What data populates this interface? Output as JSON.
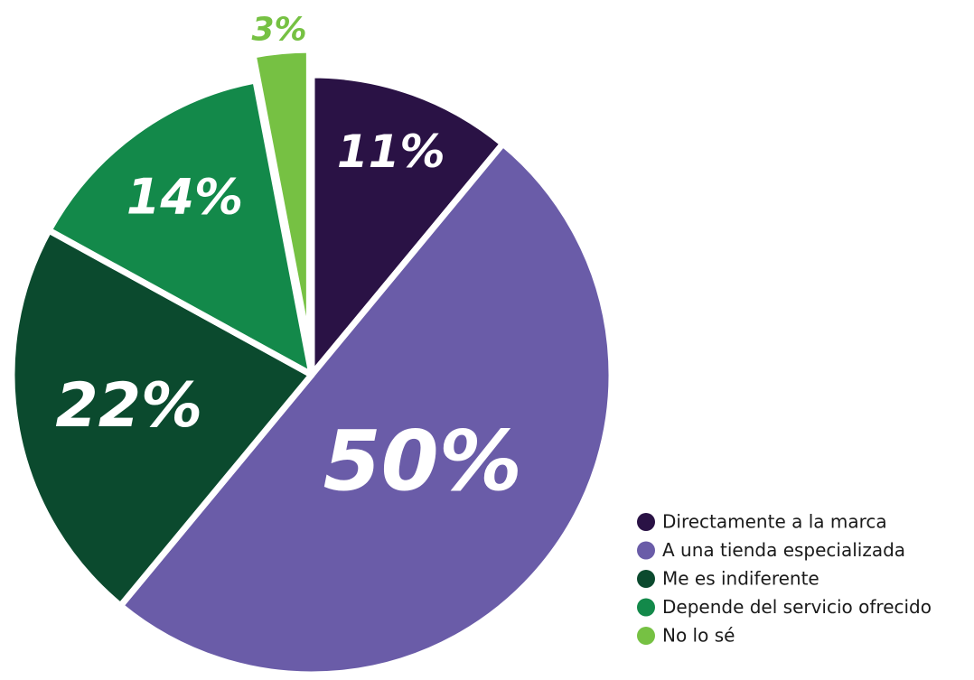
{
  "chart_data": {
    "type": "pie",
    "categories": [
      "Directamente a la marca",
      "A una tienda especializada",
      "Me es indiferente",
      "Depende del servicio ofrecido",
      "No lo sé"
    ],
    "values": [
      11,
      50,
      22,
      14,
      3
    ],
    "value_labels": [
      "11%",
      "50%",
      "22%",
      "14%",
      "3%"
    ],
    "colors": [
      "#2a1245",
      "#6a5ca8",
      "#0b4a2e",
      "#13894a",
      "#76c143"
    ],
    "legend": "bottom-right"
  }
}
